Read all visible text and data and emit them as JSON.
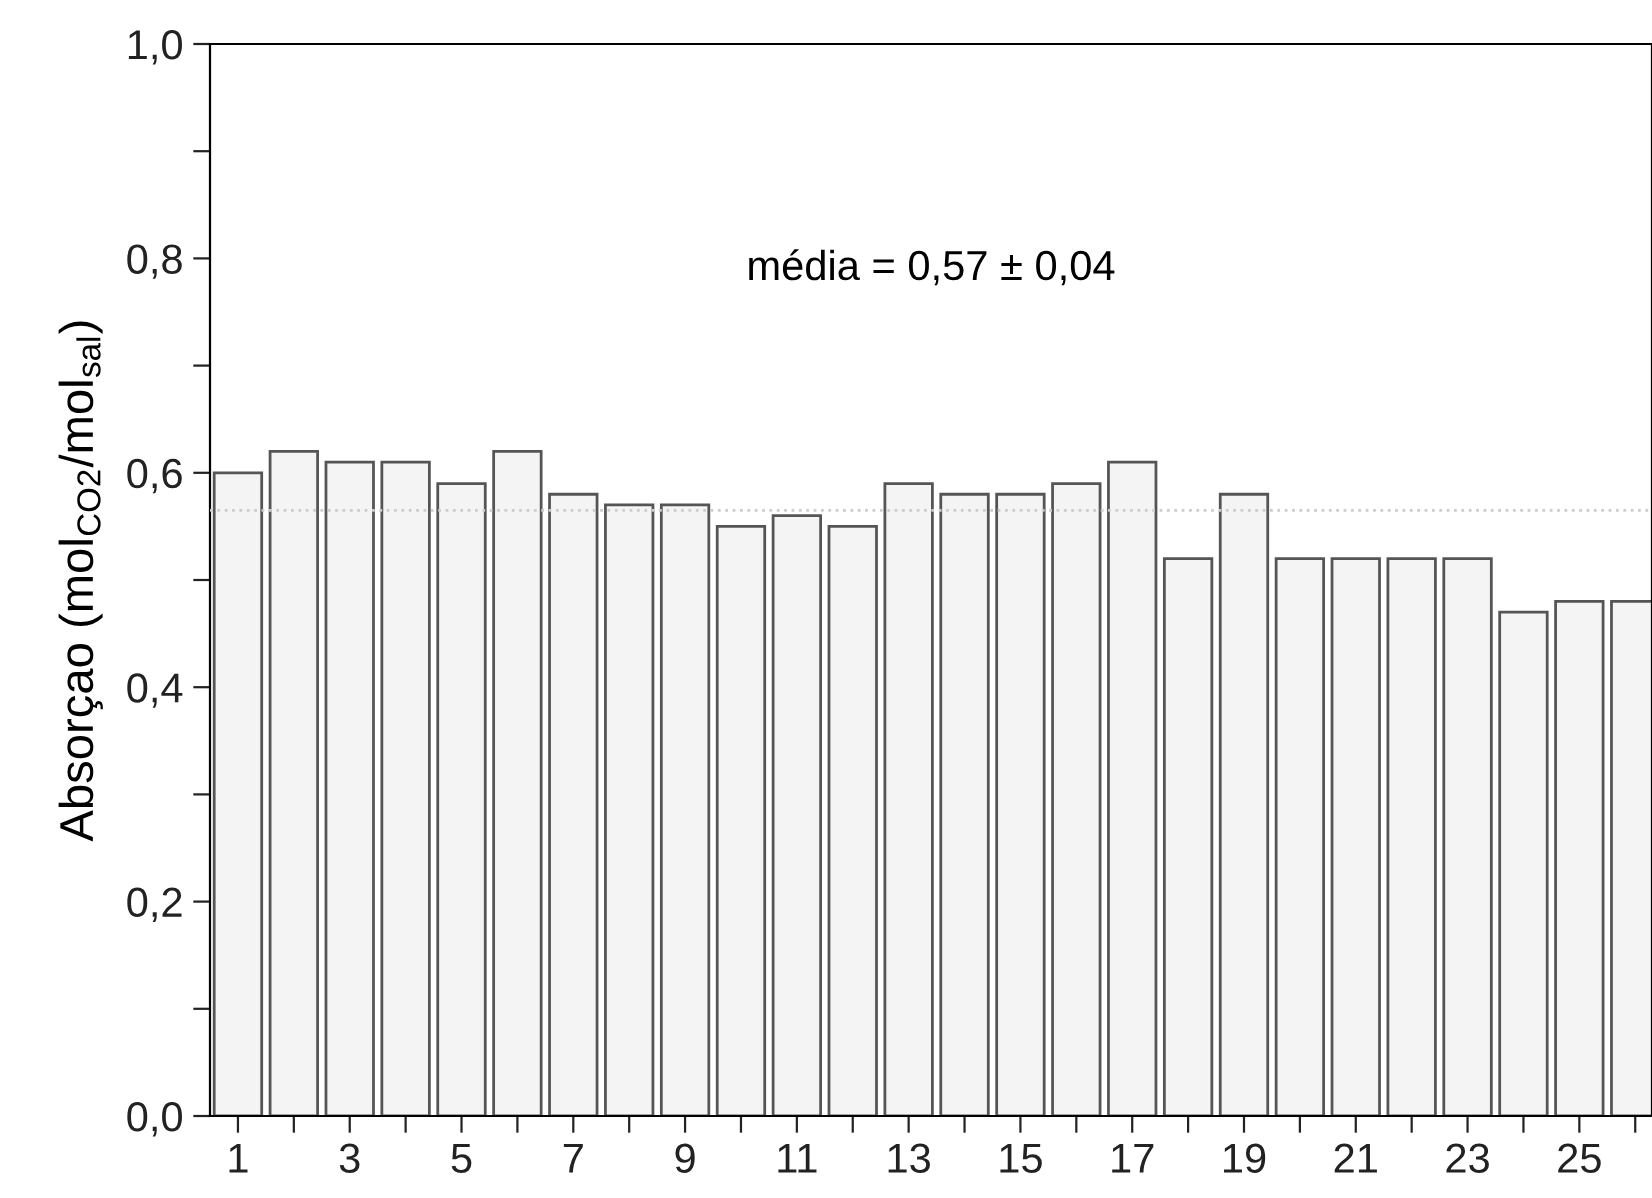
{
  "chart_data": {
    "type": "bar",
    "ylabel": "Absorçao (mol$_{CO2}$/mol$_{sal}$)",
    "x": [
      1,
      2,
      3,
      4,
      5,
      6,
      7,
      8,
      9,
      10,
      11,
      12,
      13,
      14,
      15,
      16,
      17,
      18,
      19,
      20,
      21,
      22,
      23,
      24,
      25,
      26
    ],
    "values": [
      0.6,
      0.62,
      0.61,
      0.61,
      0.59,
      0.62,
      0.58,
      0.57,
      0.57,
      0.55,
      0.56,
      0.55,
      0.59,
      0.58,
      0.58,
      0.59,
      0.61,
      0.52,
      0.58,
      0.52,
      0.52,
      0.52,
      0.52,
      0.47,
      0.48,
      0.48
    ],
    "color": "#f4f4f4",
    "xlim": [
      0.5,
      26.3
    ],
    "ylim": [
      0,
      1.0
    ],
    "xticks": [
      1,
      {
        "value": 2,
        "label": null
      },
      3,
      {
        "value": 4,
        "label": null
      },
      5,
      {
        "value": 6,
        "label": null
      },
      7,
      {
        "value": 8,
        "label": null
      },
      9,
      {
        "value": 10,
        "label": null
      },
      11,
      {
        "value": 12,
        "label": null
      },
      13,
      {
        "value": 14,
        "label": null
      },
      15,
      {
        "value": 16,
        "label": null
      },
      17,
      {
        "value": 18,
        "label": null
      },
      19,
      {
        "value": 20,
        "label": null
      },
      21,
      {
        "value": 22,
        "label": null
      },
      23,
      {
        "value": 24,
        "label": null
      },
      25,
      {
        "value": 26,
        "label": null
      }
    ],
    "yticks": [
      {
        "value": 0,
        "label": "0,0"
      },
      {
        "value": 0.1,
        "label": null
      },
      {
        "value": 0.2,
        "label": "0,2"
      },
      {
        "value": 0.3,
        "label": null
      },
      {
        "value": 0.4,
        "label": "0,4"
      },
      {
        "value": 0.5,
        "label": null
      },
      {
        "value": 0.6,
        "label": "0,6"
      },
      {
        "value": 0.7,
        "label": null
      },
      {
        "value": 0.8,
        "label": "0,8"
      },
      {
        "value": 0.9,
        "label": null
      },
      {
        "value": 1.0,
        "label": "1,0"
      }
    ],
    "ref_lines": [
      {
        "axis": "y",
        "value": 0.565,
        "color": "#cccccc",
        "line_style": "dotted"
      }
    ],
    "annotations": [
      "média = 0,57 ± 0,04"
    ],
    "grid": false,
    "legend": false
  }
}
